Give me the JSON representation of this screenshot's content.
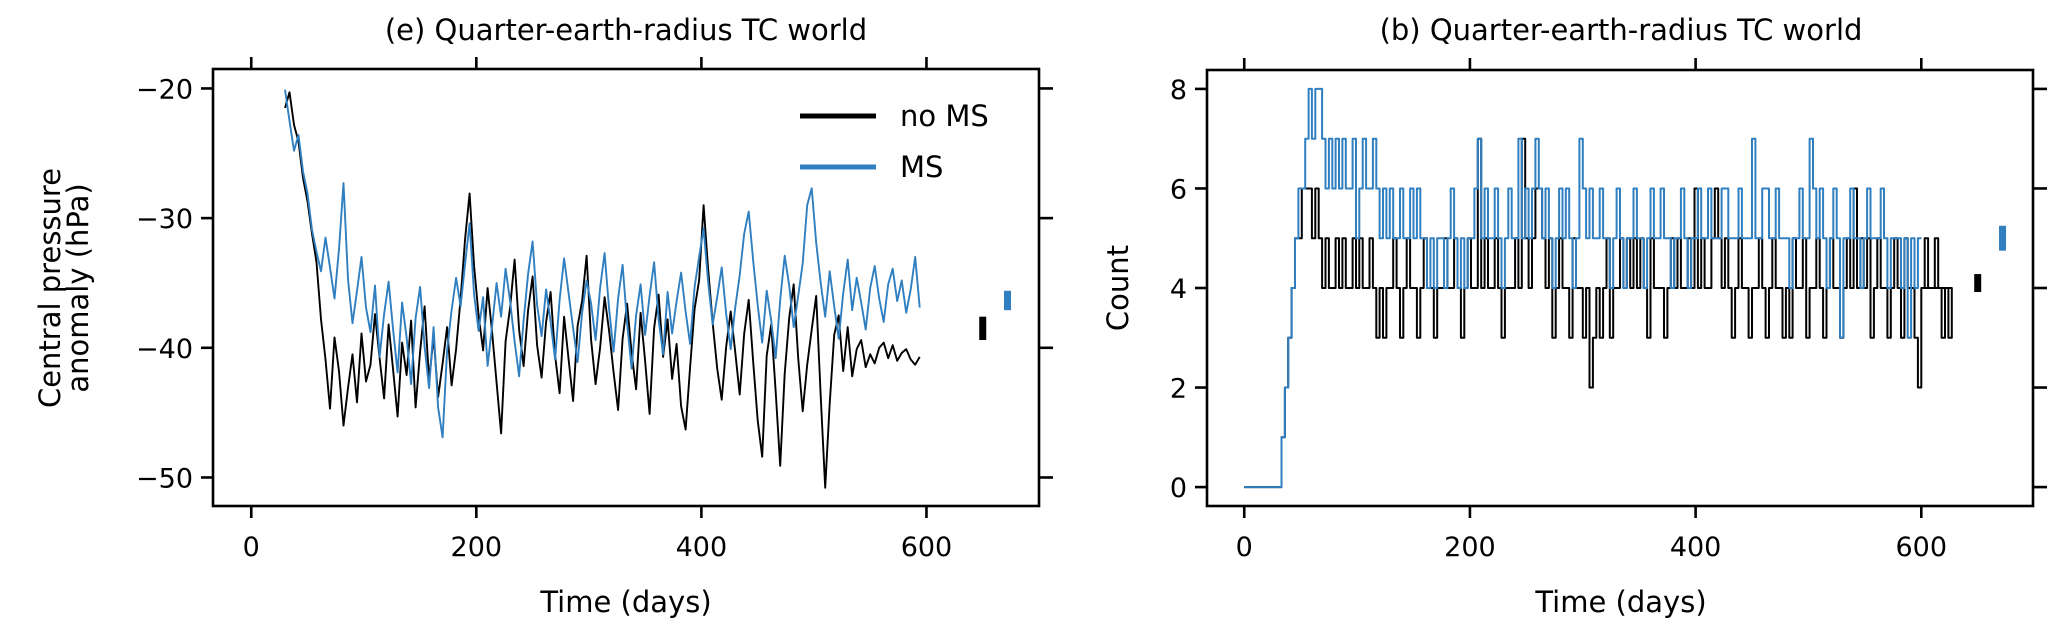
{
  "chart_data": [
    {
      "type": "line",
      "title": "(e) Quarter-earth-radius TC world",
      "xlabel": "Time (days)",
      "ylabel_lines": [
        "Central pressure",
        "anomaly (hPa)"
      ],
      "xlim": [
        -34,
        700
      ],
      "ylim": [
        -52.2,
        -18.5
      ],
      "xticks": [
        0,
        200,
        400,
        600
      ],
      "xtick_labels": [
        "0",
        "200",
        "400",
        "600"
      ],
      "yticks": [
        -20,
        -30,
        -40,
        -50
      ],
      "ytick_labels": [
        "−20",
        "−30",
        "−40",
        "−50"
      ],
      "grid": false,
      "legend": {
        "placement": "top-right",
        "entries": [
          {
            "label": "no MS",
            "color": "#000000"
          },
          {
            "label": "MS",
            "color": "#2f7fc1"
          }
        ]
      },
      "x_start": 30,
      "x_step": 4,
      "series": [
        {
          "name": "no MS",
          "color": "#000000",
          "values": [
            -21.5,
            -20.3,
            -22.8,
            -24.1,
            -26.9,
            -28.7,
            -31.2,
            -33.4,
            -37.8,
            -40.9,
            -44.7,
            -39.2,
            -41.8,
            -46.0,
            -43.1,
            -40.5,
            -44.2,
            -38.9,
            -42.6,
            -41.3,
            -37.4,
            -40.8,
            -43.9,
            -38.2,
            -41.7,
            -45.3,
            -39.6,
            -42.1,
            -37.9,
            -44.6,
            -40.3,
            -36.8,
            -42.5,
            -39.1,
            -43.8,
            -41.2,
            -38.4,
            -42.9,
            -40.1,
            -36.2,
            -31.6,
            -28.1,
            -33.7,
            -37.5,
            -40.2,
            -35.4,
            -38.8,
            -42.7,
            -46.6,
            -39.5,
            -36.9,
            -33.2,
            -38.6,
            -41.4,
            -37.1,
            -34.5,
            -39.8,
            -42.3,
            -38.0,
            -35.7,
            -40.6,
            -43.5,
            -37.6,
            -40.9,
            -44.1,
            -38.3,
            -36.4,
            -32.9,
            -39.4,
            -42.8,
            -40.0,
            -36.1,
            -38.7,
            -41.9,
            -44.8,
            -39.3,
            -36.6,
            -40.4,
            -43.2,
            -37.3,
            -41.0,
            -45.1,
            -38.5,
            -35.9,
            -40.7,
            -37.8,
            -42.4,
            -39.7,
            -44.5,
            -46.3,
            -41.5,
            -37.0,
            -34.8,
            -29.0,
            -33.9,
            -38.1,
            -41.6,
            -44.0,
            -39.9,
            -37.2,
            -40.3,
            -43.6,
            -38.9,
            -36.3,
            -41.1,
            -45.6,
            -48.4,
            -40.6,
            -38.2,
            -43.4,
            -49.1,
            -42.0,
            -37.7,
            -35.1,
            -40.8,
            -44.9,
            -41.3,
            -38.6,
            -36.0,
            -43.7,
            -50.8,
            -44.3,
            -39.0,
            -37.5,
            -41.8,
            -38.4,
            -42.2,
            -40.1,
            -39.4,
            -41.5,
            -40.5,
            -41.2,
            -40.0,
            -39.6,
            -40.8,
            -39.8,
            -41.0,
            -40.4,
            -40.1,
            -40.9,
            -41.3,
            -40.7
          ],
          "error_bar": {
            "x": 650,
            "mean": -38.5,
            "low": -39.4,
            "high": -37.6
          }
        },
        {
          "name": "MS",
          "color": "#2f7fc1",
          "values": [
            -20.1,
            -22.5,
            -24.8,
            -23.6,
            -26.4,
            -28.1,
            -30.9,
            -32.6,
            -34.1,
            -31.5,
            -33.8,
            -36.2,
            -32.4,
            -27.3,
            -34.7,
            -38.1,
            -35.6,
            -33.0,
            -36.9,
            -38.8,
            -35.2,
            -40.7,
            -37.4,
            -34.9,
            -38.6,
            -41.9,
            -36.5,
            -39.2,
            -42.8,
            -37.7,
            -35.3,
            -39.9,
            -43.1,
            -38.4,
            -44.6,
            -46.9,
            -40.2,
            -37.1,
            -34.6,
            -36.8,
            -33.5,
            -30.4,
            -35.9,
            -38.7,
            -36.1,
            -41.4,
            -38.3,
            -35.0,
            -37.6,
            -33.9,
            -36.4,
            -39.5,
            -42.2,
            -37.9,
            -34.3,
            -31.8,
            -36.7,
            -39.1,
            -35.5,
            -38.0,
            -40.9,
            -36.3,
            -33.1,
            -35.8,
            -38.5,
            -41.1,
            -37.3,
            -34.8,
            -36.6,
            -39.4,
            -35.4,
            -32.7,
            -37.0,
            -40.3,
            -36.2,
            -33.6,
            -38.1,
            -41.6,
            -37.5,
            -35.1,
            -39.0,
            -36.0,
            -33.4,
            -37.8,
            -40.5,
            -35.7,
            -38.9,
            -36.4,
            -34.2,
            -37.2,
            -39.7,
            -35.3,
            -33.0,
            -30.8,
            -34.9,
            -38.2,
            -36.1,
            -33.8,
            -37.4,
            -40.1,
            -36.9,
            -34.4,
            -31.2,
            -29.5,
            -33.3,
            -36.7,
            -39.6,
            -35.6,
            -37.9,
            -40.8,
            -36.3,
            -32.9,
            -35.2,
            -38.4,
            -36.0,
            -33.5,
            -29.0,
            -27.7,
            -31.9,
            -35.0,
            -37.6,
            -34.1,
            -36.8,
            -39.3,
            -35.8,
            -33.2,
            -37.1,
            -34.6,
            -36.5,
            -38.6,
            -35.4,
            -33.7,
            -36.2,
            -38.0,
            -35.1,
            -33.9,
            -36.4,
            -34.8,
            -37.3,
            -35.5,
            -33.0,
            -36.9
          ],
          "error_bar": {
            "x": 672,
            "mean": -36.4,
            "low": -37.1,
            "high": -35.6
          }
        }
      ]
    },
    {
      "type": "line",
      "step": true,
      "title": "(b) Quarter-earth-radius TC world",
      "xlabel": "Time (days)",
      "ylabel": "Count",
      "xlim": [
        -33,
        699
      ],
      "ylim": [
        -0.38,
        8.38
      ],
      "xticks": [
        0,
        200,
        400,
        600
      ],
      "xtick_labels": [
        "0",
        "200",
        "400",
        "600"
      ],
      "yticks": [
        0,
        2,
        4,
        6,
        8
      ],
      "ytick_labels": [
        "0",
        "2",
        "4",
        "6",
        "8"
      ],
      "grid": false,
      "x_start": 0,
      "x_step": 3,
      "series": [
        {
          "name": "no MS",
          "color": "#000000",
          "values": [
            0,
            0,
            0,
            0,
            0,
            0,
            0,
            0,
            0,
            0,
            0,
            1,
            2,
            3,
            4,
            5,
            5,
            6,
            6,
            6,
            5,
            6,
            5,
            4,
            5,
            4,
            4,
            5,
            4,
            5,
            4,
            4,
            5,
            4,
            5,
            4,
            4,
            5,
            4,
            3,
            4,
            3,
            4,
            4,
            5,
            4,
            3,
            4,
            5,
            4,
            4,
            3,
            4,
            5,
            4,
            4,
            3,
            4,
            4,
            5,
            4,
            4,
            5,
            4,
            3,
            4,
            5,
            4,
            4,
            7,
            4,
            5,
            4,
            4,
            5,
            4,
            3,
            4,
            4,
            4,
            5,
            4,
            7,
            5,
            4,
            5,
            6,
            6,
            5,
            4,
            5,
            3,
            4,
            5,
            4,
            4,
            3,
            5,
            4,
            4,
            3,
            4,
            2,
            3,
            4,
            3,
            4,
            5,
            3,
            4,
            4,
            5,
            4,
            5,
            4,
            5,
            4,
            5,
            4,
            3,
            5,
            4,
            4,
            4,
            3,
            4,
            5,
            4,
            5,
            4,
            4,
            5,
            4,
            6,
            4,
            5,
            4,
            4,
            5,
            6,
            5,
            4,
            5,
            4,
            3,
            4,
            5,
            4,
            4,
            3,
            4,
            4,
            5,
            4,
            3,
            4,
            5,
            4,
            4,
            3,
            4,
            3,
            5,
            4,
            4,
            5,
            3,
            4,
            4,
            5,
            4,
            3,
            4,
            5,
            4,
            4,
            3,
            4,
            5,
            4,
            6,
            4,
            5,
            4,
            5,
            3,
            4,
            5,
            4,
            4,
            3,
            4,
            5,
            4,
            3,
            5,
            4,
            4,
            3,
            2,
            4,
            5,
            4,
            4,
            5,
            4,
            3,
            4,
            3,
            4
          ],
          "error_bar": {
            "x": 650,
            "mean": 4.1,
            "low": 3.92,
            "high": 4.28
          }
        },
        {
          "name": "MS",
          "color": "#2f7fc1",
          "values": [
            0,
            0,
            0,
            0,
            0,
            0,
            0,
            0,
            0,
            0,
            0,
            1,
            2,
            3,
            4,
            5,
            6,
            6,
            7,
            8,
            7,
            8,
            8,
            7,
            6,
            7,
            6,
            7,
            6,
            7,
            6,
            6,
            7,
            5,
            6,
            7,
            6,
            6,
            7,
            6,
            5,
            6,
            5,
            6,
            5,
            5,
            6,
            5,
            5,
            6,
            5,
            6,
            5,
            5,
            4,
            5,
            4,
            5,
            5,
            4,
            5,
            6,
            5,
            4,
            5,
            4,
            5,
            5,
            6,
            7,
            5,
            6,
            5,
            5,
            6,
            5,
            4,
            5,
            6,
            5,
            5,
            7,
            5,
            6,
            5,
            6,
            7,
            6,
            5,
            6,
            5,
            4,
            5,
            6,
            5,
            6,
            5,
            4,
            5,
            7,
            6,
            5,
            6,
            5,
            5,
            6,
            5,
            5,
            4,
            5,
            6,
            5,
            4,
            5,
            5,
            6,
            5,
            5,
            4,
            5,
            6,
            5,
            5,
            6,
            5,
            5,
            4,
            5,
            5,
            6,
            5,
            4,
            5,
            5,
            6,
            5,
            5,
            6,
            5,
            5,
            5,
            6,
            6,
            5,
            5,
            5,
            6,
            5,
            5,
            5,
            7,
            5,
            5,
            6,
            6,
            5,
            5,
            6,
            5,
            5,
            5,
            4,
            5,
            5,
            6,
            5,
            5,
            7,
            6,
            5,
            6,
            5,
            4,
            5,
            6,
            5,
            3,
            5,
            5,
            6,
            5,
            5,
            4,
            5,
            6,
            5,
            5,
            5,
            6,
            5,
            4,
            5,
            5,
            5,
            4,
            5,
            3,
            5,
            4,
            5
          ],
          "error_bar": {
            "x": 672,
            "mean": 5.0,
            "low": 4.75,
            "high": 5.25
          }
        }
      ]
    }
  ]
}
